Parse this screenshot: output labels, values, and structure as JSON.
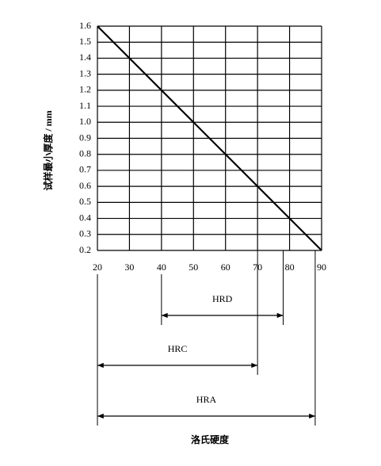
{
  "chart_data": {
    "type": "line",
    "x": [
      20,
      90
    ],
    "values": [
      1.6,
      0.2
    ],
    "color": "#000000",
    "xlim": [
      20,
      90
    ],
    "xticks": [
      20,
      30,
      40,
      50,
      60,
      70,
      80,
      90
    ],
    "ylim": [
      0.2,
      1.6
    ],
    "yticks": [
      0.2,
      0.3,
      0.4,
      0.5,
      0.6,
      0.7,
      0.8,
      0.9,
      {
        "value": 1,
        "label": "1.0"
      },
      1.1,
      1.2,
      1.3,
      1.4,
      1.5,
      1.6
    ],
    "grid": true,
    "y_label": "试样最小厚度 / mm",
    "x_label": "洛氏硬度",
    "ranges": [
      {
        "label": "HRD",
        "start": 40,
        "end": 78
      },
      {
        "label": "HRC",
        "start": 20,
        "end": 70
      },
      {
        "label": "HRA",
        "start": 20,
        "end": 88
      }
    ]
  }
}
